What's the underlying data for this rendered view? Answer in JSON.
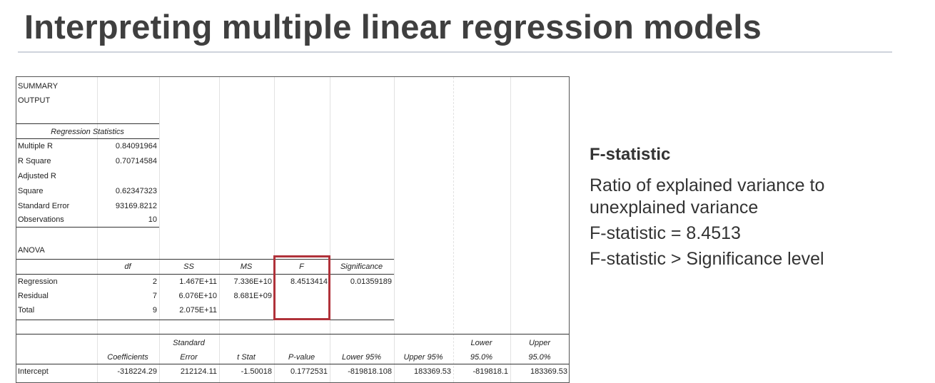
{
  "header": {
    "title": "Interpreting multiple linear regression models"
  },
  "table": {
    "rows": [
      [
        "SUMMARY",
        null,
        null,
        null,
        null,
        null,
        null,
        null,
        null
      ],
      [
        "OUTPUT",
        null,
        null,
        null,
        null,
        null,
        null,
        null,
        null
      ],
      [
        "Regression Statistics",
        null,
        null,
        null,
        null,
        null,
        null,
        null,
        null
      ],
      [
        "Multiple R",
        "0.84091964",
        null,
        null,
        null,
        null,
        null,
        null,
        null
      ],
      [
        "R Square",
        "0.70714584",
        null,
        null,
        null,
        null,
        null,
        null,
        null
      ],
      [
        "Adjusted R",
        null,
        null,
        null,
        null,
        null,
        null,
        null,
        null
      ],
      [
        "Square",
        "0.62347323",
        null,
        null,
        null,
        null,
        null,
        null,
        null
      ],
      [
        "Standard Error",
        "93169.8212",
        null,
        null,
        null,
        null,
        null,
        null,
        null
      ],
      [
        "Observations",
        "10",
        null,
        null,
        null,
        null,
        null,
        null,
        null
      ],
      [
        "ANOVA",
        null,
        null,
        null,
        null,
        null,
        null,
        null,
        null
      ],
      [
        null,
        "df",
        "SS",
        "MS",
        "F",
        "Significance",
        null,
        null,
        null
      ],
      [
        "Regression",
        "2",
        "1.467E+11",
        "7.336E+10",
        "8.4513414",
        "0.01359189",
        null,
        null,
        null
      ],
      [
        "Residual",
        "7",
        "6.076E+10",
        "8.681E+09",
        null,
        null,
        null,
        null,
        null
      ],
      [
        "Total",
        "9",
        "2.075E+11",
        null,
        null,
        null,
        null,
        null,
        null
      ],
      [
        null,
        null,
        "Standard",
        null,
        null,
        null,
        null,
        "Lower",
        "Upper"
      ],
      [
        null,
        "Coefficients",
        "Error",
        "t Stat",
        "P-value",
        "Lower 95%",
        "Upper 95%",
        "95.0%",
        "95.0%"
      ],
      [
        "Intercept",
        "-318224.29",
        "212124.11",
        "-1.50018",
        "0.1772531",
        "-819818.108",
        "183369.53",
        "-819818.1",
        "183369.53"
      ]
    ]
  },
  "side": {
    "heading": "F-statistic",
    "lines": [
      "Ratio of explained variance to unexplained variance",
      "F-statistic = 8.4513",
      "F-statistic > Significance level"
    ]
  }
}
